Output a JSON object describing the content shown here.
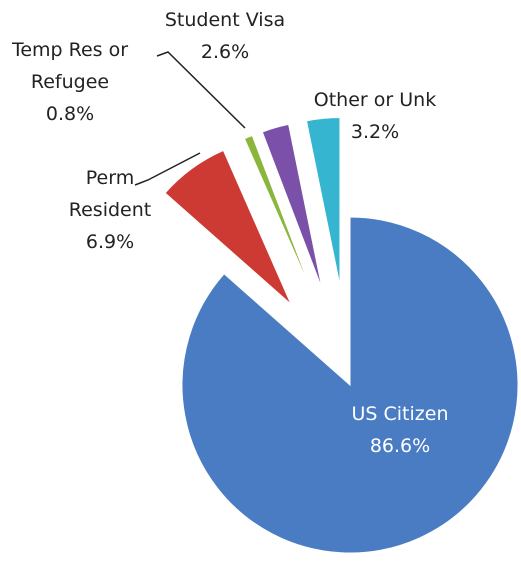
{
  "chart_data": {
    "type": "pie",
    "categories": [
      "US Citizen",
      "Perm Resident",
      "Temp Res or Refugee",
      "Student Visa",
      "Other or Unk"
    ],
    "values": [
      86.6,
      6.9,
      0.8,
      2.6,
      3.2
    ],
    "value_labels": [
      "86.6%",
      "6.9%",
      "0.8%",
      "2.6%",
      "3.2%"
    ],
    "colors": [
      "#4a7cc4",
      "#cc3a33",
      "#8bb63c",
      "#7a50a8",
      "#35b5d0"
    ]
  }
}
